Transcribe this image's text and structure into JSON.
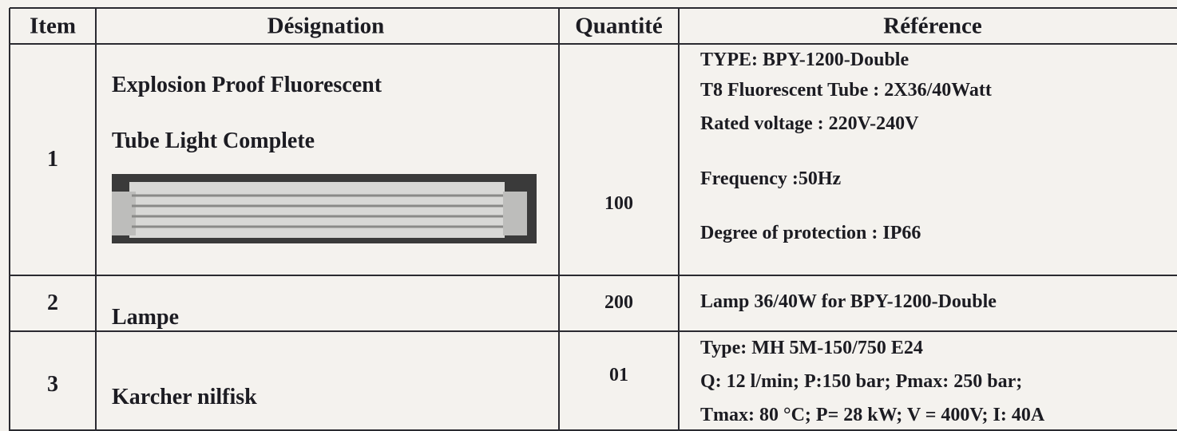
{
  "table": {
    "header": [
      "Item",
      "Désignation",
      "Quantité",
      "Référence"
    ],
    "rows": [
      {
        "item": "1",
        "designation": [
          "Explosion Proof Fluorescent",
          "Tube Light Complete"
        ],
        "quantity": "100",
        "reference": [
          "TYPE: BPY-1200-Double",
          "T8 Fluorescent Tube : 2X36/40Watt",
          "Rated voltage : 220V-240V",
          "Frequency :50Hz",
          "Degree of protection : IP66"
        ]
      },
      {
        "item": "2",
        "designation": [
          "Lampe"
        ],
        "quantity": "200",
        "reference": [
          "Lamp 36/40W for BPY-1200-Double"
        ]
      },
      {
        "item": "3",
        "designation": [
          "Karcher nilfisk"
        ],
        "quantity": "01",
        "reference": [
          "Type: MH 5M-150/750 E24",
          "Q: 12 l/min; P:150 bar; Pmax: 250 bar;",
          "Tmax: 80 °C; P= 28 kW; V = 400V; I: 40A"
        ]
      }
    ]
  }
}
